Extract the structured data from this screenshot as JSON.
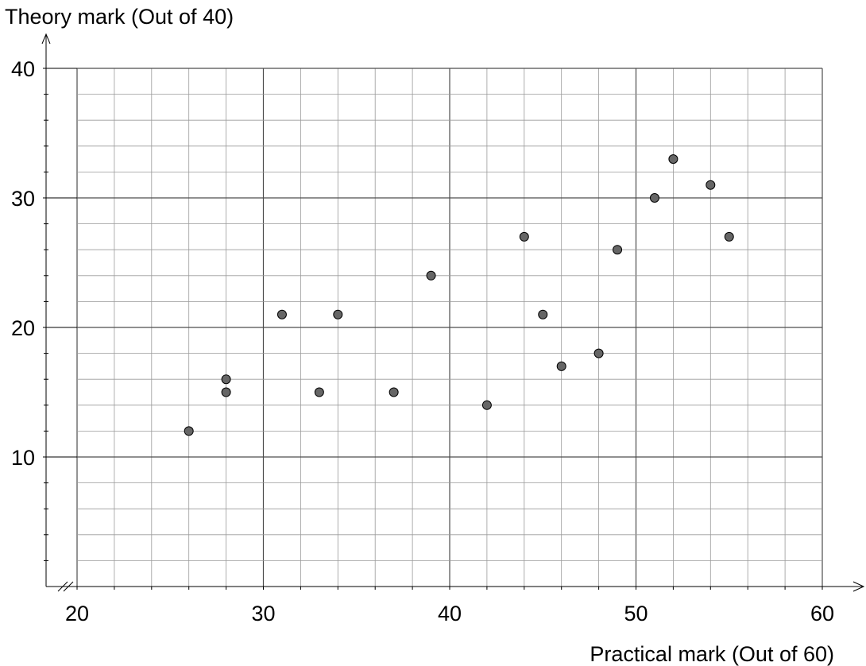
{
  "chart_data": {
    "type": "scatter",
    "title": "",
    "xlabel": "Practical mark (Out of 60)",
    "ylabel": "Theory mark (Out of 40)",
    "xlim": [
      20,
      60
    ],
    "ylim": [
      0,
      40
    ],
    "x_ticks": [
      20,
      30,
      40,
      50,
      60
    ],
    "y_ticks": [
      10,
      20,
      30,
      40
    ],
    "x_minor_step": 2,
    "y_minor_step": 2,
    "grid": true,
    "axis_break_x": true,
    "marker_color": "#666666",
    "points": [
      {
        "x": 26,
        "y": 12
      },
      {
        "x": 28,
        "y": 16
      },
      {
        "x": 28,
        "y": 15
      },
      {
        "x": 31,
        "y": 21
      },
      {
        "x": 33,
        "y": 15
      },
      {
        "x": 34,
        "y": 21
      },
      {
        "x": 37,
        "y": 15
      },
      {
        "x": 39,
        "y": 24
      },
      {
        "x": 42,
        "y": 14
      },
      {
        "x": 44,
        "y": 27
      },
      {
        "x": 45,
        "y": 21
      },
      {
        "x": 46,
        "y": 17
      },
      {
        "x": 48,
        "y": 18
      },
      {
        "x": 49,
        "y": 26
      },
      {
        "x": 51,
        "y": 30
      },
      {
        "x": 52,
        "y": 33
      },
      {
        "x": 54,
        "y": 31
      },
      {
        "x": 55,
        "y": 27
      }
    ]
  }
}
